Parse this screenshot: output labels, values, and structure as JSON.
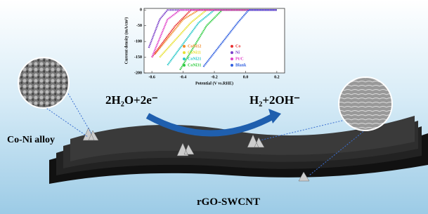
{
  "chart_data": {
    "type": "line",
    "x_label": "Potential (V vs.RHE)",
    "y_label": "Current density (mA/cm²)",
    "xlim": [
      -0.65,
      0.25
    ],
    "xticks": [
      -0.6,
      -0.4,
      -0.2,
      {
        "value": 0,
        "label": "0.0"
      },
      0.2
    ],
    "ylim": [
      -200,
      5
    ],
    "yticks": [
      0,
      -50,
      -100,
      -150,
      -200
    ],
    "series": [
      {
        "name": "CoNi12",
        "color": "#f28c28",
        "x": [
          -0.58,
          -0.4,
          -0.3,
          0.2
        ],
        "values": [
          -140,
          -30,
          0,
          0
        ]
      },
      {
        "name": "CoNi11",
        "color": "#e8e030",
        "x": [
          -0.55,
          -0.35,
          -0.25,
          0.2
        ],
        "values": [
          -150,
          -40,
          0,
          0
        ]
      },
      {
        "name": "CoNi21",
        "color": "#27c8c8",
        "x": [
          -0.5,
          -0.3,
          -0.2,
          0.2
        ],
        "values": [
          -175,
          -40,
          0,
          0
        ]
      },
      {
        "name": "CoNi31",
        "color": "#2ecc40",
        "x": [
          -0.42,
          -0.25,
          -0.15,
          0.2
        ],
        "values": [
          -190,
          -50,
          0,
          0
        ]
      },
      {
        "name": "Co",
        "color": "#e83030",
        "x": [
          -0.6,
          -0.45,
          -0.35,
          0.2
        ],
        "values": [
          -150,
          -50,
          0,
          0
        ]
      },
      {
        "name": "Ni",
        "color": "#7a3fc8",
        "x": [
          -0.62,
          -0.55,
          -0.5,
          0.2
        ],
        "values": [
          -120,
          -30,
          0,
          0
        ]
      },
      {
        "name": "Pt/C",
        "color": "#e040c8",
        "x": [
          -0.6,
          -0.5,
          -0.42,
          0.2
        ],
        "values": [
          -150,
          -30,
          0,
          0
        ]
      },
      {
        "name": "Blank",
        "color": "#2f5fe0",
        "x": [
          -0.27,
          -0.05,
          0.02,
          0.2
        ],
        "values": [
          -180,
          -40,
          0,
          0
        ]
      }
    ]
  },
  "labels": {
    "reactants": "2H₂O+2e⁻",
    "products": "H₂+2OH⁻",
    "alloy": "Co-Ni alloy",
    "support": "rGO-SWCNT"
  }
}
